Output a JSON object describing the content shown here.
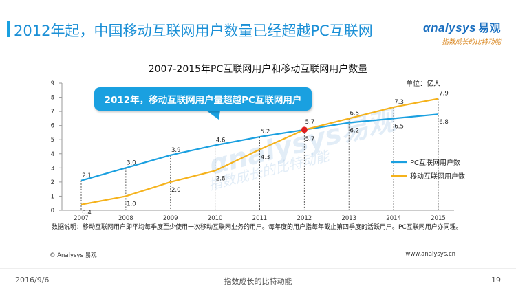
{
  "slide": {
    "title": "2012年起，中国移动互联网用户数量已经超越PC互联网",
    "logo_main": "nalysys",
    "logo_cn": "易观",
    "logo_tagline": "指数成长的比特动能",
    "watermark": "nalysys易观",
    "watermark_sub": "指数成长的比特动能",
    "callout": "2012年，移动互联网用户量超越PC互联网用户",
    "unit": "单位：亿人",
    "note": "数据说明：移动互联网用户即平均每季度至少使用一次移动互联网业务的用户。每年度的用户指每年截止第四季度的活跃用户。PC互联网用户亦同理。",
    "copyright": "© Analysys 易观",
    "website": "www.analysys.cn",
    "date": "2016/9/6",
    "slogan": "指数成长的比特动能",
    "page": "19"
  },
  "colors": {
    "accent": "#1aa0e0",
    "pc_series": "#1aa0e0",
    "mobile_series": "#f5b21b",
    "crossover_dot": "#e02020",
    "orange_tagline": "#d9841b"
  },
  "chart_data": {
    "type": "line",
    "title": "2007-2015年PC互联网用户和移动互联网用户数量",
    "x": [
      "2007",
      "2008",
      "2009",
      "2010",
      "2011",
      "2012",
      "2013",
      "2014",
      "2015"
    ],
    "ylim": [
      0,
      9
    ],
    "yticks": [
      0,
      1,
      2,
      3,
      4,
      5,
      6,
      7,
      8,
      9
    ],
    "grid": false,
    "vertical_dashed_guides": true,
    "legend_position": "right",
    "series": [
      {
        "name": "PC互联网用户数",
        "color": "#1aa0e0",
        "values": [
          2.1,
          3.0,
          3.9,
          4.6,
          5.2,
          5.7,
          6.2,
          6.5,
          6.8
        ]
      },
      {
        "name": "移动互联网用户数",
        "color": "#f5b21b",
        "values": [
          0.4,
          1.0,
          2.0,
          2.8,
          4.3,
          5.7,
          6.5,
          7.3,
          7.9
        ]
      }
    ],
    "highlight": {
      "x": "2012",
      "y": 5.7
    }
  }
}
